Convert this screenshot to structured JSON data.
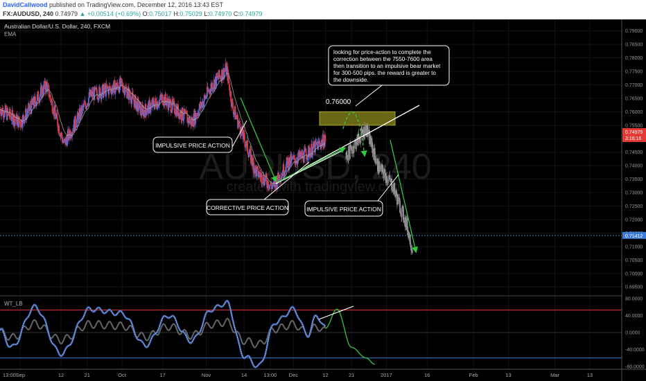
{
  "header": {
    "author": "DavidCallwood",
    "published": " published on TradingView.com, December 12, 2016 13:43 EST",
    "symbol_line": "FX:AUDUSD, 240",
    "last": "0.74979",
    "change": "+0.00514 (+0.69%)",
    "o_label": "O:",
    "o": "0.75017",
    "h_label": "H:",
    "h": "0.75029",
    "l_label": "L:",
    "l": "0.74970",
    "c_label": "C:",
    "c": "0.74979"
  },
  "main": {
    "title": "Australian Dollar/U.S. Dollar, 240, FXCM",
    "indicator": "EMA",
    "watermark": "AUDUSD, 240",
    "watermark2": "created with tradingview.com"
  },
  "annotations": {
    "note": [
      "looking for price-action to complete the",
      "correction between the 7550-7600 area",
      "then transition to an impulsive bear market",
      "for 300-500 pips. the reward is greater to",
      "the downside."
    ],
    "target_level": "0.76000",
    "impulsive_1": "IMPULSIVE PRICE ACTION",
    "corrective": "CORRECTIVE PRICE ACTION",
    "impulsive_2": "IMPULSIVE PRICE ACTION"
  },
  "price_axis": {
    "ticks": [
      "0.79000",
      "0.78500",
      "0.78000",
      "0.77500",
      "0.77000",
      "0.76500",
      "0.76000",
      "0.75500",
      "0.75000",
      "0.74500",
      "0.74000",
      "0.73500",
      "0.73000",
      "0.72500",
      "0.72000",
      "0.71500",
      "0.71000",
      "0.70500",
      "0.70000",
      "0.69500"
    ],
    "current_price": "0.74979",
    "countdown": "3:16:16",
    "reference_price": "0.71412"
  },
  "oscillator": {
    "name": "WT_LB",
    "ticks": [
      "80.0000",
      "40.0000",
      "0.0000",
      "-40.0000",
      "-80.0000"
    ]
  },
  "time_axis": {
    "labels": [
      "13:00",
      "Sep",
      "12",
      "21",
      "Oct",
      "17",
      "Nov",
      "14",
      "13:00",
      "Dec",
      "12",
      "21",
      "2017",
      "16",
      "Feb",
      "13",
      "Mar",
      "13"
    ]
  },
  "colors": {
    "background": "#000000",
    "bull_candle": "#5b6ee1",
    "bear_candle": "#e53935",
    "projection": "#7a7a7a",
    "arrow": "#2ecc40",
    "target_zone": "#7a7a1a",
    "oscillator_wave": "#4a74c9",
    "current_price_tag": "#e53935",
    "reference_price_tag": "#3d7bd9"
  },
  "chart_data": {
    "type": "candlestick",
    "title": "Australian Dollar/U.S. Dollar, 240, FXCM",
    "ylim": [
      0.693,
      0.7935
    ],
    "price_path": [
      {
        "date": "2016-08-22",
        "close": 0.761
      },
      {
        "date": "2016-08-29",
        "close": 0.756
      },
      {
        "date": "2016-09-07",
        "close": 0.77
      },
      {
        "date": "2016-09-13",
        "close": 0.748
      },
      {
        "date": "2016-09-22",
        "close": 0.766
      },
      {
        "date": "2016-10-03",
        "close": 0.77
      },
      {
        "date": "2016-10-10",
        "close": 0.76
      },
      {
        "date": "2016-10-17",
        "close": 0.765
      },
      {
        "date": "2016-10-27",
        "close": 0.756
      },
      {
        "date": "2016-11-03",
        "close": 0.77
      },
      {
        "date": "2016-11-08",
        "close": 0.776
      },
      {
        "date": "2016-11-10",
        "close": 0.762
      },
      {
        "date": "2016-11-18",
        "close": 0.738
      },
      {
        "date": "2016-11-24",
        "close": 0.732
      },
      {
        "date": "2016-11-29",
        "close": 0.741
      },
      {
        "date": "2016-12-05",
        "close": 0.744
      },
      {
        "date": "2016-12-12",
        "close": 0.7498
      }
    ],
    "projection": [
      {
        "date": "2016-12-19",
        "close": 0.743
      },
      {
        "date": "2016-12-26",
        "close": 0.754
      },
      {
        "date": "2016-12-30",
        "close": 0.74
      },
      {
        "date": "2017-01-04",
        "close": 0.733
      },
      {
        "date": "2017-01-09",
        "close": 0.718
      },
      {
        "date": "2017-01-11",
        "close": 0.709
      }
    ],
    "target_zone": [
      0.755,
      0.76
    ],
    "target_label": 0.76,
    "reference_line": 0.71412,
    "oscillator": {
      "name": "WT_LB",
      "ylim": [
        -85,
        85
      ],
      "upper_level": 53,
      "lower_level": -60,
      "points": [
        {
          "date": "2016-08-22",
          "value": 5
        },
        {
          "date": "2016-08-26",
          "value": -35
        },
        {
          "date": "2016-09-03",
          "value": 60
        },
        {
          "date": "2016-09-12",
          "value": -50
        },
        {
          "date": "2016-09-22",
          "value": 55
        },
        {
          "date": "2016-10-03",
          "value": 45
        },
        {
          "date": "2016-10-11",
          "value": -30
        },
        {
          "date": "2016-10-19",
          "value": 40
        },
        {
          "date": "2016-10-27",
          "value": -20
        },
        {
          "date": "2016-11-03",
          "value": 55
        },
        {
          "date": "2016-11-08",
          "value": 70
        },
        {
          "date": "2016-11-14",
          "value": -55
        },
        {
          "date": "2016-11-19",
          "value": -80
        },
        {
          "date": "2016-11-25",
          "value": 25
        },
        {
          "date": "2016-12-01",
          "value": 55
        },
        {
          "date": "2016-12-06",
          "value": -5
        },
        {
          "date": "2016-12-09",
          "value": 40
        },
        {
          "date": "2016-12-12",
          "value": 10
        }
      ],
      "projection": [
        {
          "date": "2016-12-12",
          "value": 10
        },
        {
          "date": "2016-12-16",
          "value": 55
        },
        {
          "date": "2016-12-21",
          "value": -35
        },
        {
          "date": "2016-12-26",
          "value": -60
        },
        {
          "date": "2016-12-29",
          "value": -75
        }
      ]
    }
  }
}
